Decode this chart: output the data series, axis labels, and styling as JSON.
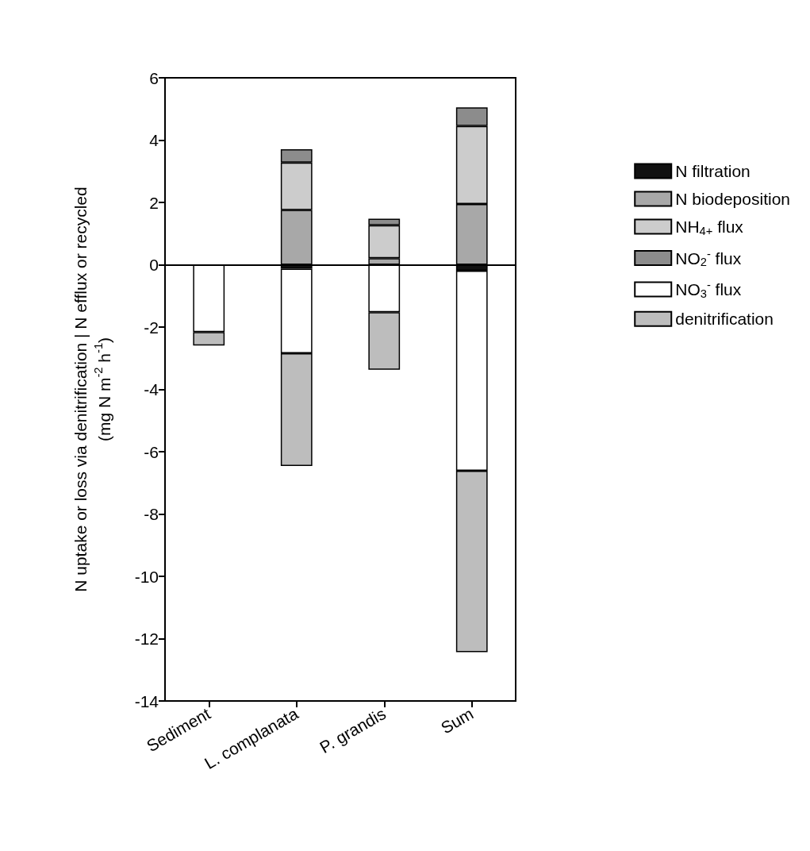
{
  "chart_data": {
    "type": "bar",
    "stacked": true,
    "categories": [
      "Sediment",
      "L. complanata",
      "P. grandis",
      "Sum"
    ],
    "ylabel": "N uptake or loss via denitrification | N efflux or recycled\n(mg N m$^{-2}$ h$^{-1}$)",
    "ylim": [
      -14,
      6
    ],
    "yticks": [
      -14,
      -12,
      -10,
      -8,
      -6,
      -4,
      -2,
      0,
      2,
      4,
      6
    ],
    "grid": false,
    "legend": "right",
    "ref_lines": [
      {
        "axis": "y",
        "value": 0,
        "color": "#000000"
      }
    ],
    "series": [
      {
        "name": "N filtration",
        "color": "#111111",
        "values": [
          null,
          -0.13,
          null,
          -0.19
        ]
      },
      {
        "name": "N biodeposition",
        "color": "#a8a8a8",
        "values": [
          null,
          1.76,
          0.21,
          1.95
        ]
      },
      {
        "name": "NH$_{4+}$ flux",
        "color": "#cccccc",
        "values": [
          null,
          1.52,
          1.06,
          2.5
        ]
      },
      {
        "name": "NO$_{2}$$^{-}$ flux",
        "color": "#8c8c8c",
        "values": [
          null,
          0.43,
          0.21,
          0.6
        ]
      },
      {
        "name": "NO$_{3}$$^{-}$ flux",
        "color": "#ffffff",
        "values": [
          -2.16,
          -2.71,
          -1.52,
          -6.42
        ]
      },
      {
        "name": "denitrification",
        "color": "#bdbdbd",
        "values": [
          -0.43,
          -3.62,
          -1.85,
          -5.82
        ]
      }
    ]
  }
}
